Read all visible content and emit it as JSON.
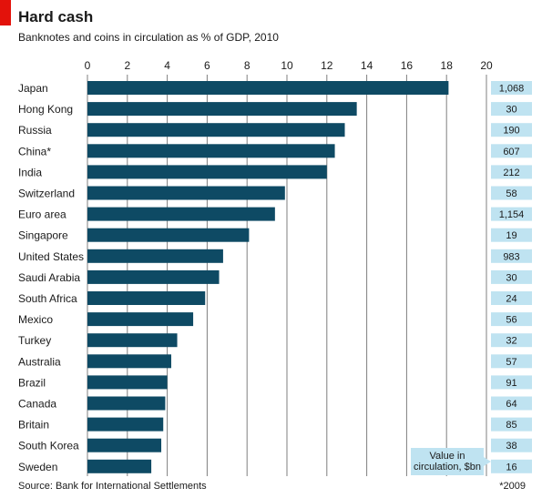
{
  "header": {
    "title": "Hard cash",
    "subtitle": "Banknotes and coins in circulation as % of GDP, 2010"
  },
  "footer": {
    "source": "Source: Bank for International Settlements",
    "footnote": "*2009"
  },
  "colors": {
    "bar": "#0e4a64",
    "value_box": "#bfe3f1",
    "accent": "#e3120b"
  },
  "chart_data": {
    "type": "bar",
    "orientation": "horizontal",
    "title": "Hard cash",
    "subtitle": "Banknotes and coins in circulation as % of GDP, 2010",
    "xlim": [
      0,
      20
    ],
    "xticks": [
      0,
      2,
      4,
      6,
      8,
      10,
      12,
      14,
      16,
      18,
      20
    ],
    "grid": true,
    "categories": [
      "Japan",
      "Hong Kong",
      "Russia",
      "China*",
      "India",
      "Switzerland",
      "Euro area",
      "Singapore",
      "United States",
      "Saudi Arabia",
      "South Africa",
      "Mexico",
      "Turkey",
      "Australia",
      "Brazil",
      "Canada",
      "Britain",
      "South Korea",
      "Sweden"
    ],
    "values": [
      18.1,
      13.5,
      12.9,
      12.4,
      12.0,
      9.9,
      9.4,
      8.1,
      6.8,
      6.6,
      5.9,
      5.3,
      4.5,
      4.2,
      4.0,
      3.9,
      3.8,
      3.7,
      3.2
    ],
    "value_in_circulation": {
      "label": "Value in circulation, $bn",
      "label_lines": [
        "Value in",
        "circulation, $bn"
      ],
      "values": [
        "1,068",
        "30",
        "190",
        "607",
        "212",
        "58",
        "1,154",
        "19",
        "983",
        "30",
        "24",
        "56",
        "32",
        "57",
        "91",
        "64",
        "85",
        "38",
        "16"
      ]
    }
  }
}
